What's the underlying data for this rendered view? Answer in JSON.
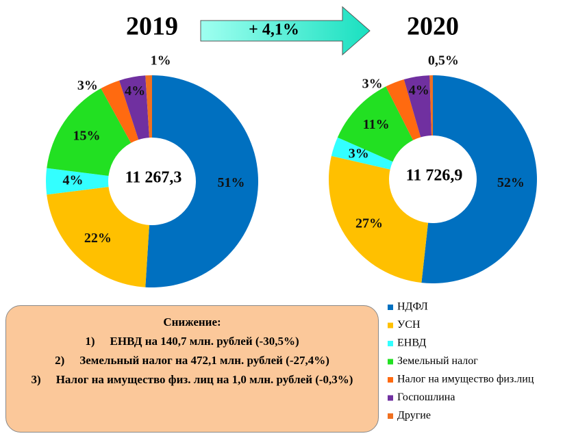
{
  "chart_data": [
    {
      "type": "donut",
      "title": "2019",
      "center_label": "11 267,3",
      "values": [
        51,
        22,
        4,
        15,
        3,
        4,
        1
      ],
      "value_labels": [
        "51%",
        "22%",
        "4%",
        "15%",
        "3%",
        "4%",
        "1%"
      ]
    },
    {
      "type": "donut",
      "title": "2020",
      "center_label": "11 726,9",
      "values": [
        52,
        27,
        3,
        11,
        3,
        4,
        0.5
      ],
      "value_labels": [
        "52%",
        "27%",
        "3%",
        "11%",
        "3%",
        "4%",
        "0,5%"
      ]
    }
  ],
  "legend": {
    "labels": [
      "НДФЛ",
      "УСН",
      "ЕНВД",
      "Земельный налог",
      "Налог на имущество физ.лиц",
      "Госпошлина",
      "Другие"
    ],
    "colors": [
      "#0070c0",
      "#ffc000",
      "#33ffff",
      "#22e022",
      "#ff6a10",
      "#7030a0",
      "#f07020"
    ]
  },
  "arrow_label": "+ 4,1%",
  "note": {
    "title": "Снижение:",
    "items": [
      {
        "num": "1)",
        "text": "ЕНВД  на 140,7 млн. рублей (-30,5%)"
      },
      {
        "num": "2)",
        "text": "Земельный налог на 472,1 млн. рублей (-27,4%)"
      },
      {
        "num": "3)",
        "text": "Налог на имущество  физ. лиц на 1,0 млн. рублей (-0,3%)"
      }
    ]
  }
}
